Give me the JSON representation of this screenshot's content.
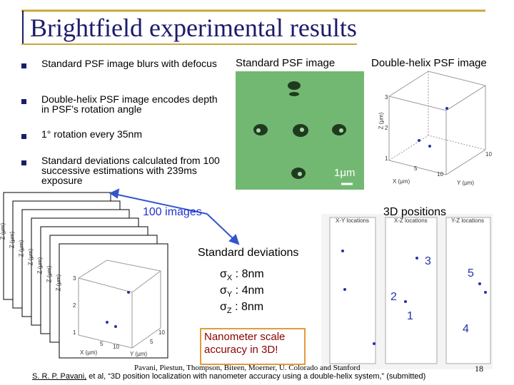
{
  "header": {
    "title": "Brightfield experimental results"
  },
  "bullets": [
    "Standard PSF image blurs with defocus",
    "Double-helix PSF image encodes depth in PSF’s rotation angle",
    "1° rotation every 35nm",
    "Standard deviations calculated from 100 successive estimations with 239ms exposure"
  ],
  "images": {
    "standard_label": "Standard PSF image",
    "double_helix_label": "Double-helix PSF image",
    "scale_bar": "1μm",
    "dh_axes": {
      "z": "Z (μm)",
      "x": "X (μm)",
      "y": "Y (μm)",
      "ticks": [
        "3",
        "2",
        "1",
        "10",
        "5",
        "10"
      ]
    }
  },
  "stack": {
    "label": "100 images",
    "axis_label": "Z (μm)",
    "front_axes": {
      "x": "X (μm)",
      "y": "Y (μm)",
      "ticks": [
        "3",
        "2",
        "1",
        "10",
        "5",
        "10",
        "5"
      ]
    }
  },
  "positions": {
    "label": "3D positions",
    "panels": [
      "X-Y locations",
      "X-Z locations",
      "Y-Z locations"
    ],
    "markers": [
      "3",
      "5",
      "2",
      "1",
      "4"
    ]
  },
  "deviations": {
    "title": "Standard deviations",
    "symbol": "σ",
    "items": [
      {
        "sub": "X",
        "value": ": 8nm"
      },
      {
        "sub": "Y",
        "value": ": 4nm"
      },
      {
        "sub": "Z",
        "value": ": 8nm"
      }
    ]
  },
  "callout": "Nanometer scale accuracy in 3D!",
  "footer": {
    "credit": "Pavani, Piestun, Thompson, Biteen, Moerner, U. Colorado and Stanford",
    "citation_author": "S. R. P. Pavani,",
    "citation": " et al, “3D position localization with nanometer accuracy using a double-helix system,” (submitted)",
    "page": "18"
  }
}
